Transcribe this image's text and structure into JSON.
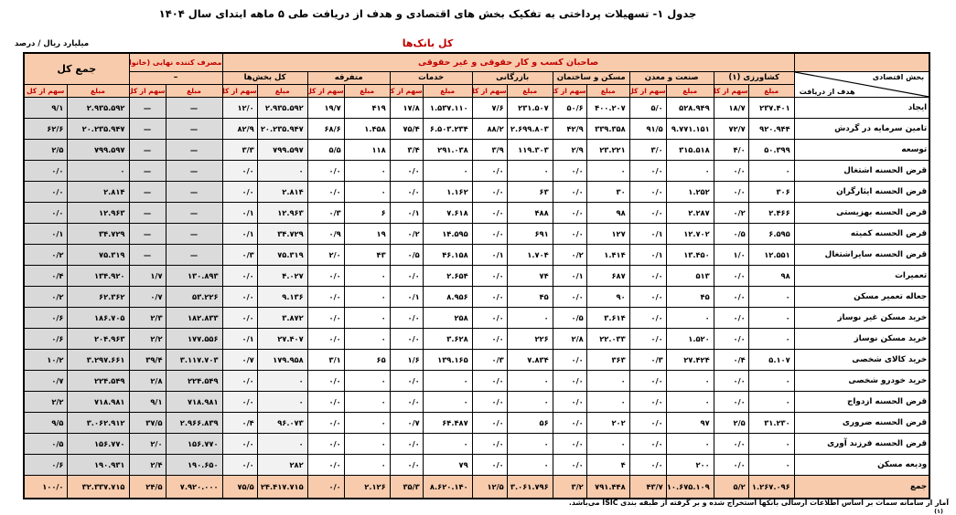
{
  "title": "جدول ۱- تسهیلات پرداختی به تفکیک بخش های اقتصادی و هدف از دریافت طی ۵ ماهه ابتدای سال ۱۴۰۴",
  "subtitle": "کل بانک‌ها",
  "unit_label": "میلیارد ریال / درصد",
  "footnote": "آمار از سامانه سمات بر اساس اطلاعات ارسالی بانکها استخراج شده و بر گرفته از طبقه بندی ISIC می‌باشد.",
  "footnote_mark": "(۱)",
  "colors": {
    "accent_red": "#C00000",
    "header_bg": "#F8CBAD",
    "total_col_gray": "#D9D9D9",
    "sections_col_gray": "#F2F2F2"
  },
  "table": {
    "corner_col_label": "بخش اقتصادی",
    "corner_row_label": "هدف از دریافت",
    "banner": "صاحبان کسب و کار حقوقی و غیر حقوقی",
    "household_title": "مصرف کننده نهایی (خانوار)",
    "household_dash": "–",
    "grand_label": "جمع کل",
    "amount_label": "مبلغ",
    "share_label": "سهم از کل",
    "groups": [
      "کشاورزی (۱)",
      "صنعت و معدن",
      "مسکن و ساختمان",
      "بازرگانی",
      "خدمات",
      "متفرقه",
      "کل بخش‌ها"
    ],
    "rows": [
      {
        "label": "ایجاد",
        "cells": [
          "۲۳۷.۴۰۱",
          "۱۸/۷",
          "۵۲۸.۹۴۹",
          "۵/۰",
          "۴۰۰.۲۰۷",
          "۵۰/۶",
          "۲۳۱.۵۰۷",
          "۷/۶",
          "۱.۵۳۷.۱۱۰",
          "۱۷/۸",
          "۴۱۹",
          "۱۹/۷",
          "۲.۹۳۵.۵۹۲",
          "۱۲/۰",
          "—",
          "—",
          "۲.۹۳۵.۵۹۲",
          "۹/۱"
        ]
      },
      {
        "label": "تامین سرمایه در گردش",
        "cells": [
          "۹۲۰.۹۴۴",
          "۷۲/۷",
          "۹.۷۷۱.۱۵۱",
          "۹۱/۵",
          "۳۳۹.۳۵۸",
          "۴۲/۹",
          "۲.۶۹۹.۸۰۳",
          "۸۸/۲",
          "۶.۵۰۳.۲۳۴",
          "۷۵/۴",
          "۱.۴۵۸",
          "۶۸/۶",
          "۲۰.۲۳۵.۹۴۷",
          "۸۲/۹",
          "—",
          "—",
          "۲۰.۲۳۵.۹۴۷",
          "۶۲/۶"
        ]
      },
      {
        "label": "توسعه",
        "cells": [
          "۵۰.۳۹۹",
          "۴/۰",
          "۳۱۵.۵۱۸",
          "۳/۰",
          "۲۳.۲۲۱",
          "۲/۹",
          "۱۱۹.۳۰۳",
          "۳/۹",
          "۲۹۱.۰۳۸",
          "۳/۴",
          "۱۱۸",
          "۵/۵",
          "۷۹۹.۵۹۷",
          "۳/۳",
          "—",
          "—",
          "۷۹۹.۵۹۷",
          "۲/۵"
        ]
      },
      {
        "label": "قرض الحسنه اشتغال",
        "cells": [
          "۰",
          "۰/۰",
          "۰",
          "۰/۰",
          "۰",
          "۰/۰",
          "۰",
          "۰/۰",
          "۰",
          "۰/۰",
          "۰",
          "۰/۰",
          "۰",
          "۰/۰",
          "—",
          "—",
          "۰",
          "۰/۰"
        ]
      },
      {
        "label": "قرض الحسنه ایثارگران",
        "cells": [
          "۳۰۶",
          "۰/۰",
          "۱.۲۵۲",
          "۰/۰",
          "۳۰",
          "۰/۰",
          "۶۳",
          "۰/۰",
          "۱.۱۶۲",
          "۰/۰",
          "۰",
          "۰/۰",
          "۲.۸۱۴",
          "۰/۰",
          "—",
          "—",
          "۲.۸۱۴",
          "۰/۰"
        ]
      },
      {
        "label": "قرض الحسنه بهزیستی",
        "cells": [
          "۲.۴۶۶",
          "۰/۲",
          "۲.۲۸۷",
          "۰/۰",
          "۹۸",
          "۰/۰",
          "۴۸۸",
          "۰/۰",
          "۷.۶۱۸",
          "۰/۱",
          "۶",
          "۰/۳",
          "۱۲.۹۶۳",
          "۰/۱",
          "—",
          "—",
          "۱۲.۹۶۳",
          "۰/۰"
        ]
      },
      {
        "label": "قرض الحسنه کمیته",
        "cells": [
          "۶.۵۹۵",
          "۰/۵",
          "۱۲.۷۰۲",
          "۰/۱",
          "۱۲۷",
          "۰/۰",
          "۶۹۱",
          "۰/۰",
          "۱۴.۵۹۵",
          "۰/۲",
          "۱۹",
          "۰/۹",
          "۳۴.۷۲۹",
          "۰/۱",
          "—",
          "—",
          "۳۴.۷۲۹",
          "۰/۱"
        ]
      },
      {
        "label": "قرض الحسنه سایراشتغال",
        "cells": [
          "۱۲.۵۵۱",
          "۱/۰",
          "۱۳.۴۵۰",
          "۰/۱",
          "۱.۴۱۴",
          "۰/۲",
          "۱.۷۰۴",
          "۰/۱",
          "۴۶.۱۵۸",
          "۰/۵",
          "۴۳",
          "۲/۰",
          "۷۵.۳۱۹",
          "۰/۳",
          "—",
          "—",
          "۷۵.۳۱۹",
          "۰/۲"
        ]
      },
      {
        "label": "تعمیرات",
        "cells": [
          "۹۸",
          "۰/۰",
          "۵۱۳",
          "۰/۰",
          "۶۸۷",
          "۰/۱",
          "۷۴",
          "۰/۰",
          "۲.۶۵۴",
          "۰/۰",
          "۰",
          "۰/۰",
          "۴.۰۲۷",
          "۰/۰",
          "۱۳۰.۸۹۳",
          "۱/۷",
          "۱۳۴.۹۲۰",
          "۰/۴"
        ]
      },
      {
        "label": "جعاله تعمیر مسکن",
        "cells": [
          "۰",
          "۰/۰",
          "۴۵",
          "۰/۰",
          "۹۰",
          "۰/۰",
          "۴۵",
          "۰/۰",
          "۸.۹۵۶",
          "۰/۱",
          "۰",
          "۰/۰",
          "۹.۱۳۶",
          "۰/۰",
          "۵۳.۲۲۶",
          "۰/۷",
          "۶۲.۳۶۲",
          "۰/۲"
        ]
      },
      {
        "label": "خرید مسکن غیر نوساز",
        "cells": [
          "۰",
          "۰/۰",
          "۰",
          "۰/۰",
          "۳.۶۱۴",
          "۰/۵",
          "۰",
          "۰/۰",
          "۲۵۸",
          "۰/۰",
          "۰",
          "۰/۰",
          "۳.۸۷۲",
          "۰/۰",
          "۱۸۲.۸۳۳",
          "۲/۳",
          "۱۸۶.۷۰۵",
          "۰/۶"
        ]
      },
      {
        "label": "خرید مسکن نوساز",
        "cells": [
          "۰",
          "۰/۰",
          "۱.۵۲۰",
          "۰/۰",
          "۲۲.۰۳۳",
          "۲/۸",
          "۲۲۶",
          "۰/۰",
          "۳.۶۲۸",
          "۰/۰",
          "۰",
          "۰/۰",
          "۲۷.۴۰۷",
          "۰/۱",
          "۱۷۷.۵۵۶",
          "۲/۲",
          "۲۰۴.۹۶۳",
          "۰/۶"
        ]
      },
      {
        "label": "خرید کالای شخصی",
        "cells": [
          "۵.۱۰۷",
          "۰/۴",
          "۲۷.۴۲۴",
          "۰/۳",
          "۳۶۳",
          "۰/۰",
          "۷.۸۳۴",
          "۰/۳",
          "۱۳۹.۱۶۵",
          "۱/۶",
          "۶۵",
          "۳/۱",
          "۱۷۹.۹۵۸",
          "۰/۷",
          "۳.۱۱۷.۷۰۳",
          "۳۹/۴",
          "۳.۲۹۷.۶۶۱",
          "۱۰/۲"
        ]
      },
      {
        "label": "خرید خودرو شخصی",
        "cells": [
          "۰",
          "۰/۰",
          "۰",
          "۰/۰",
          "۰",
          "۰/۰",
          "۰",
          "۰/۰",
          "۰",
          "۰/۰",
          "۰",
          "۰/۰",
          "۰",
          "۰/۰",
          "۲۲۴.۵۴۹",
          "۲/۸",
          "۲۲۴.۵۴۹",
          "۰/۷"
        ]
      },
      {
        "label": "قرض الحسنه ازدواج",
        "cells": [
          "۰",
          "۰/۰",
          "۰",
          "۰/۰",
          "۰",
          "۰/۰",
          "۰",
          "۰/۰",
          "۰",
          "۰/۰",
          "۰",
          "۰/۰",
          "۰",
          "۰/۰",
          "۷۱۸.۹۸۱",
          "۹/۱",
          "۷۱۸.۹۸۱",
          "۲/۲"
        ]
      },
      {
        "label": "قرض الحسنه ضروری",
        "cells": [
          "۳۱.۲۳۰",
          "۲/۵",
          "۹۷",
          "۰/۰",
          "۲۰۲",
          "۰/۰",
          "۵۶",
          "۰/۰",
          "۶۴.۴۸۷",
          "۰/۷",
          "۰",
          "۰/۰",
          "۹۶.۰۷۳",
          "۰/۴",
          "۲.۹۶۶.۸۳۹",
          "۳۷/۵",
          "۳.۰۶۲.۹۱۲",
          "۹/۵"
        ]
      },
      {
        "label": "قرض الحسنه فرزند آوری",
        "cells": [
          "۰",
          "۰/۰",
          "۰",
          "۰/۰",
          "۰",
          "۰/۰",
          "۰",
          "۰/۰",
          "۰",
          "۰/۰",
          "۰",
          "۰/۰",
          "۰",
          "۰/۰",
          "۱۵۶.۷۷۰",
          "۲/۰",
          "۱۵۶.۷۷۰",
          "۰/۵"
        ]
      },
      {
        "label": "ودیعه مسکن",
        "cells": [
          "۰",
          "۰/۰",
          "۲۰۰",
          "۰/۰",
          "۴",
          "۰/۰",
          "۰",
          "۰/۰",
          "۷۹",
          "۰/۰",
          "۰",
          "۰/۰",
          "۲۸۲",
          "۰/۰",
          "۱۹۰.۶۵۰",
          "۲/۴",
          "۱۹۰.۹۳۱",
          "۰/۶"
        ]
      },
      {
        "label": "جمع",
        "total": true,
        "cells": [
          "۱.۲۶۷.۰۹۶",
          "۵/۲",
          "۱۰.۶۷۵.۱۰۹",
          "۴۳/۷",
          "۷۹۱.۴۴۸",
          "۳/۲",
          "۳.۰۶۱.۷۹۶",
          "۱۲/۵",
          "۸.۶۲۰.۱۴۰",
          "۳۵/۳",
          "۲.۱۲۶",
          "۰/۰",
          "۲۴.۴۱۷.۷۱۵",
          "۷۵/۵",
          "۷.۹۲۰.۰۰۰",
          "۲۴/۵",
          "۳۲.۳۳۷.۷۱۵",
          "۱۰۰/۰"
        ]
      }
    ]
  }
}
